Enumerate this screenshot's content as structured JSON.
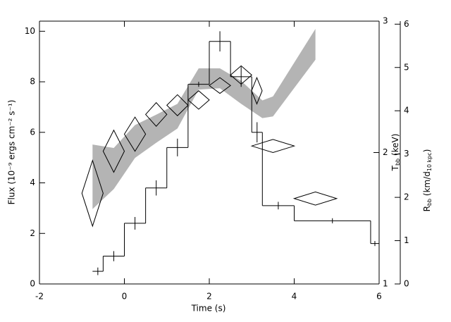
{
  "chart_data": {
    "type": "step",
    "xlabel": "Time (s)",
    "ylabel": "Flux (10⁻⁹ ergs cm⁻² s⁻¹)",
    "y2label": {
      "main": "T",
      "sub": "bb",
      "rest": " (keV)"
    },
    "y3label": {
      "main": "R",
      "sub": "bb",
      "rest": " (km/d",
      "sub2": "10 kpc",
      "end": ")"
    },
    "xlim": [
      -2,
      6
    ],
    "xticks": [
      -2,
      0,
      2,
      4,
      6
    ],
    "ylim": [
      0,
      10.4
    ],
    "yticks": [
      0,
      2,
      4,
      6,
      8,
      10
    ],
    "y2lim": [
      1,
      3
    ],
    "y2ticks": [
      1,
      2,
      3
    ],
    "y3lim": [
      0,
      6.07
    ],
    "y3ticks": [
      0,
      1,
      2,
      3,
      4,
      5,
      6
    ],
    "series": [
      {
        "type": "band",
        "axis": "y3",
        "color": "#b4b4b4",
        "x": [
          -0.75,
          -0.25,
          0.25,
          0.75,
          1.25,
          1.75,
          2.25,
          2.75,
          3.25,
          3.5,
          4.5
        ],
        "low": [
          1.73,
          2.19,
          2.91,
          3.26,
          3.59,
          4.49,
          4.52,
          4.16,
          3.83,
          3.87,
          5.18
        ],
        "high": [
          3.22,
          3.14,
          3.67,
          3.91,
          4.16,
          4.98,
          4.98,
          4.69,
          4.24,
          4.33,
          5.89
        ]
      },
      {
        "type": "step",
        "axis": "y",
        "color": "#000000",
        "bins": [
          -0.75,
          -0.5,
          0,
          0.5,
          1.0,
          1.5,
          2.0,
          2.5,
          3.0,
          3.25,
          4.0,
          5.8,
          6.0
        ],
        "values": [
          0.5,
          1.1,
          2.4,
          3.8,
          5.4,
          7.9,
          9.6,
          8.2,
          6.0,
          3.1,
          2.5,
          1.6
        ],
        "errors": [
          0.15,
          0.2,
          0.25,
          0.3,
          0.35,
          0.1,
          0.4,
          0.4,
          0.4,
          0.15,
          0.1,
          0.1
        ]
      },
      {
        "type": "diamond",
        "axis": "y2",
        "color": "#000000",
        "x": [
          -0.75,
          -0.25,
          0.25,
          0.75,
          1.25,
          1.75,
          2.25,
          2.75,
          3.12,
          3.5,
          4.5
        ],
        "xerr": [
          0.25,
          0.25,
          0.25,
          0.25,
          0.25,
          0.25,
          0.25,
          0.25,
          0.125,
          0.5,
          0.5
        ],
        "values": [
          1.69,
          2.01,
          2.14,
          2.29,
          2.36,
          2.4,
          2.51,
          2.59,
          2.47,
          2.05,
          1.65
        ],
        "errors": [
          0.25,
          0.16,
          0.13,
          0.09,
          0.08,
          0.07,
          0.06,
          0.07,
          0.1,
          0.05,
          0.05
        ]
      }
    ]
  }
}
